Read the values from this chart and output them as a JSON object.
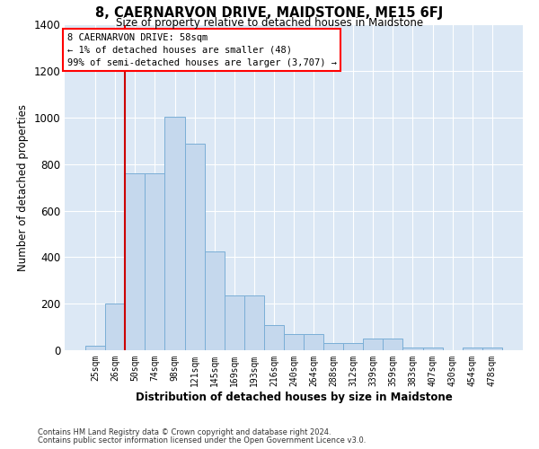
{
  "title": "8, CAERNARVON DRIVE, MAIDSTONE, ME15 6FJ",
  "subtitle": "Size of property relative to detached houses in Maidstone",
  "xlabel": "Distribution of detached houses by size in Maidstone",
  "ylabel": "Number of detached properties",
  "bar_color": "#c5d8ed",
  "bar_edge_color": "#7aaed6",
  "background_color": "#dce8f5",
  "grid_color": "#ffffff",
  "categories": [
    "25sqm",
    "26sqm",
    "50sqm",
    "74sqm",
    "98sqm",
    "121sqm",
    "145sqm",
    "169sqm",
    "193sqm",
    "216sqm",
    "240sqm",
    "264sqm",
    "288sqm",
    "312sqm",
    "339sqm",
    "359sqm",
    "383sqm",
    "407sqm",
    "430sqm",
    "454sqm",
    "478sqm"
  ],
  "values": [
    20,
    200,
    760,
    760,
    1005,
    890,
    425,
    235,
    235,
    110,
    70,
    70,
    30,
    30,
    50,
    50,
    10,
    10,
    0,
    10,
    10
  ],
  "ylim": [
    0,
    1400
  ],
  "yticks": [
    0,
    200,
    400,
    600,
    800,
    1000,
    1200,
    1400
  ],
  "vline_pos": 1.5,
  "annotation_text": "8 CAERNARVON DRIVE: 58sqm\n← 1% of detached houses are smaller (48)\n99% of semi-detached houses are larger (3,707) →",
  "footnote1": "Contains HM Land Registry data © Crown copyright and database right 2024.",
  "footnote2": "Contains public sector information licensed under the Open Government Licence v3.0."
}
